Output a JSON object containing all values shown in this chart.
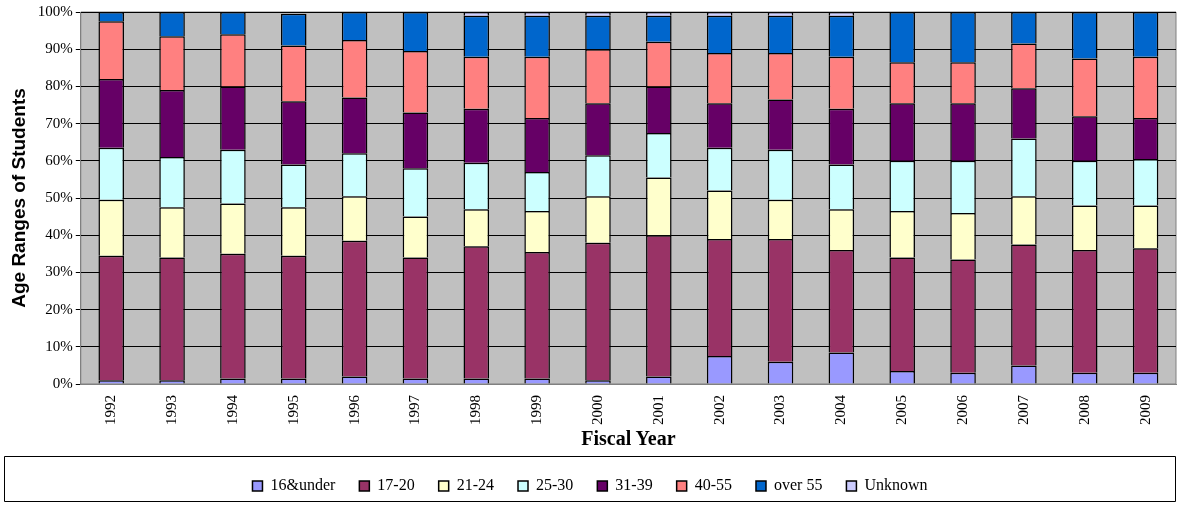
{
  "chart_data": {
    "type": "bar",
    "stacked": true,
    "xlabel": "Fiscal Year",
    "ylabel": "Age Ranges of Students",
    "categories": [
      "1992",
      "1993",
      "1994",
      "1995",
      "1996",
      "1997",
      "1998",
      "1999",
      "2000",
      "2001",
      "2002",
      "2003",
      "2004",
      "2005",
      "2006",
      "2007",
      "2008",
      "2009"
    ],
    "series": [
      {
        "name": "16&under",
        "color": "#9999ff",
        "values": [
          1,
          1,
          1.5,
          1.5,
          2,
          1.5,
          1.5,
          1.5,
          1,
          2,
          7.5,
          6,
          8.5,
          3.5,
          3,
          5,
          3,
          3
        ]
      },
      {
        "name": "17-20",
        "color": "#993366",
        "values": [
          33.5,
          33,
          33.5,
          33,
          36.5,
          32.5,
          35.5,
          34,
          37,
          38,
          31.5,
          33,
          27.5,
          30.5,
          30.5,
          32.5,
          33,
          33.5
        ]
      },
      {
        "name": "21-24",
        "color": "#ffffcc",
        "values": [
          15,
          13.5,
          13.5,
          13,
          12,
          11,
          10,
          11,
          12.5,
          15.5,
          13,
          10.5,
          11,
          12.5,
          12.5,
          13,
          12,
          11.5
        ]
      },
      {
        "name": "25-30",
        "color": "#ccffff",
        "values": [
          14,
          13.5,
          14.5,
          11.5,
          11.5,
          13,
          12.5,
          10.5,
          11,
          12,
          11.5,
          13.5,
          12,
          13.5,
          14,
          15.5,
          12,
          12.5
        ]
      },
      {
        "name": "31-39",
        "color": "#660066",
        "values": [
          18.5,
          18,
          17,
          17,
          15,
          15,
          14.5,
          14.5,
          14,
          12.5,
          12,
          13.5,
          15,
          15.5,
          15.5,
          13.5,
          12,
          11
        ]
      },
      {
        "name": "40-55",
        "color": "#ff8080",
        "values": [
          15.5,
          14.5,
          14,
          15,
          15.5,
          16.5,
          14,
          16.5,
          14.5,
          12,
          13.5,
          12.5,
          14,
          11,
          11,
          12,
          15.5,
          16.5
        ]
      },
      {
        "name": "over 55",
        "color": "#0066cc",
        "values": [
          2.5,
          6.5,
          6,
          8.5,
          7.5,
          10.5,
          11,
          11,
          9,
          7,
          10,
          10,
          11,
          13.5,
          13.5,
          8.5,
          12.5,
          12
        ]
      },
      {
        "name": "Unknown",
        "color": "#ccccff",
        "values": [
          0,
          0,
          0,
          null,
          0,
          0,
          1,
          1,
          1,
          1,
          1,
          1,
          1,
          0,
          0,
          0,
          0,
          0
        ]
      }
    ],
    "ylim": [
      0,
      100
    ],
    "yticks": [
      {
        "value": 0,
        "label": "0%"
      },
      {
        "value": 10,
        "label": "10%"
      },
      {
        "value": 20,
        "label": "20%"
      },
      {
        "value": 30,
        "label": "30%"
      },
      {
        "value": 40,
        "label": "40%"
      },
      {
        "value": 50,
        "label": "50%"
      },
      {
        "value": 60,
        "label": "60%"
      },
      {
        "value": 70,
        "label": "70%"
      },
      {
        "value": 80,
        "label": "80%"
      },
      {
        "value": 90,
        "label": "90%"
      },
      {
        "value": 100,
        "label": "100%"
      }
    ],
    "grid": "y",
    "legend": "bottom"
  }
}
